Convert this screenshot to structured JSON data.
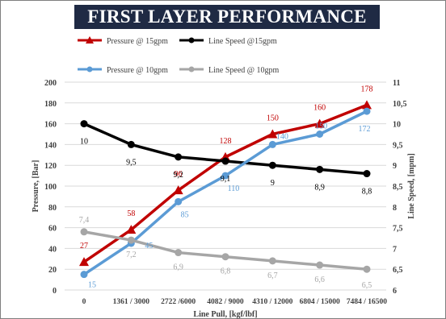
{
  "chart_data": {
    "type": "line",
    "title": "FIRST LAYER PERFORMANCE",
    "xlabel": "Line Pull, [kgf/lbf]",
    "ylabel": "Pressure, [Bar]",
    "y2label": "Line Speed, [mpm]",
    "categories": [
      "0",
      "1361 / 3000",
      "2722 /6000",
      "4082 / 9000",
      "4310 / 12000",
      "6804 / 15000",
      "7484 / 16500"
    ],
    "ylim": [
      0,
      200
    ],
    "yticks": [
      "0",
      "20",
      "40",
      "60",
      "80",
      "100",
      "120",
      "140",
      "160",
      "180",
      "200"
    ],
    "y2lim": [
      6,
      11
    ],
    "y2ticks": [
      "6",
      "6,5",
      "7",
      "7,5",
      "8",
      "8,5",
      "9",
      "9,5",
      "10",
      "10,5",
      "11"
    ],
    "grid": true,
    "legend_position": "top",
    "series": [
      {
        "name": "Pressure @ 15gpm",
        "axis": "left",
        "color": "#c00000",
        "marker": "triangle",
        "values": [
          27,
          58,
          96,
          128,
          150,
          160,
          178
        ],
        "labels": [
          "27",
          "58",
          "96",
          "128",
          "150",
          "160",
          "178"
        ]
      },
      {
        "name": "Line Speed @15gpm",
        "axis": "right",
        "color": "#000000",
        "marker": "circle",
        "values": [
          10,
          9.5,
          9.2,
          9.1,
          9.0,
          8.9,
          8.8
        ],
        "labels": [
          "10",
          "9,5",
          "9,2",
          "9,1",
          "9",
          "8,9",
          "8,8"
        ]
      },
      {
        "name": "Pressure @ 10gpm",
        "axis": "left",
        "color": "#5b9bd5",
        "marker": "circle",
        "values": [
          15,
          45,
          85,
          110,
          140,
          150,
          172
        ],
        "labels": [
          "15",
          "45",
          "85",
          "110",
          "140",
          "150",
          "172"
        ]
      },
      {
        "name": "Line Speed @ 10gpm",
        "axis": "right",
        "color": "#a6a6a6",
        "marker": "circle",
        "values": [
          7.4,
          7.2,
          6.9,
          6.8,
          6.7,
          6.6,
          6.5
        ],
        "labels": [
          "7,4",
          "7,2",
          "6,9",
          "6,8",
          "6,7",
          "6,6",
          "6,5"
        ]
      }
    ]
  }
}
